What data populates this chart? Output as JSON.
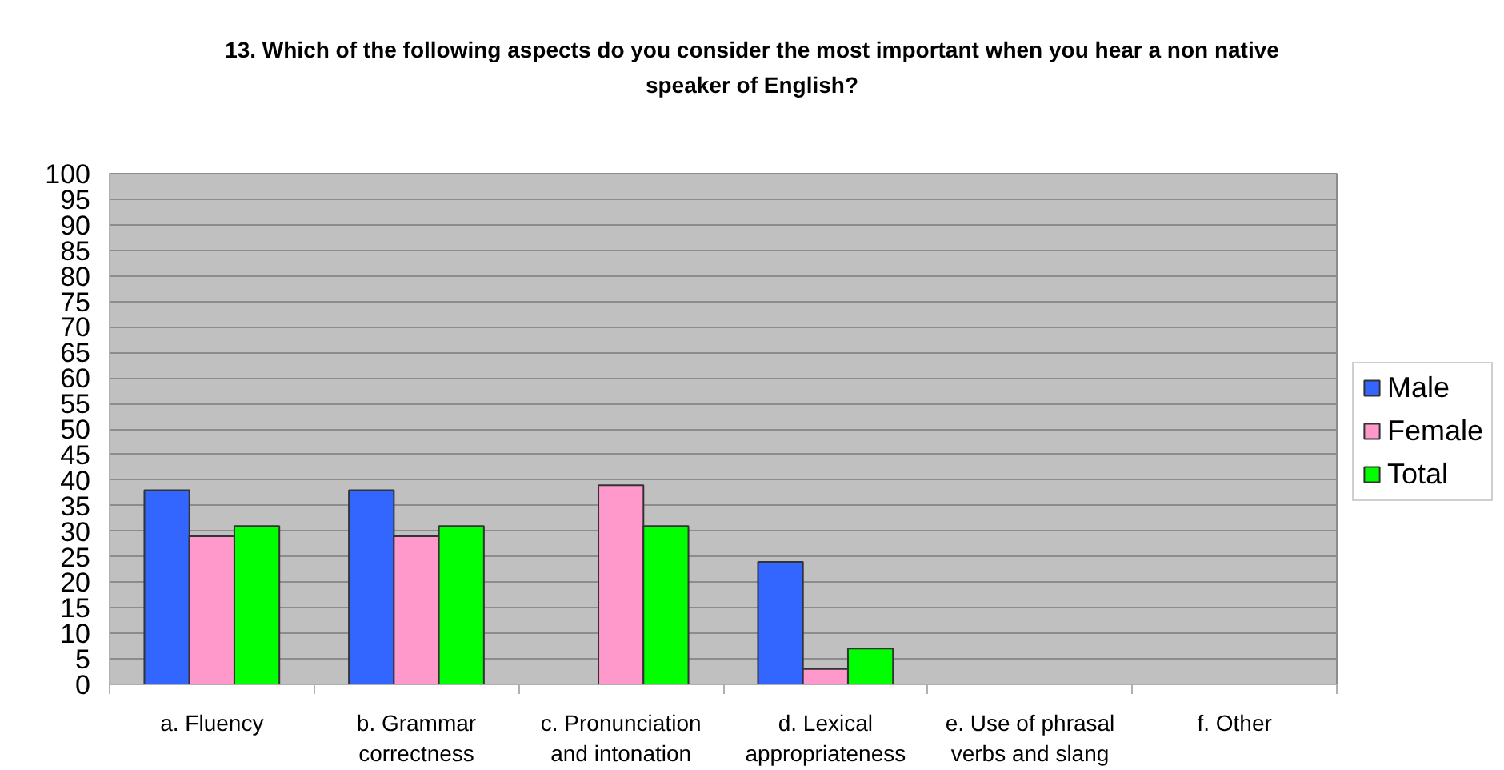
{
  "chart_data": {
    "type": "bar",
    "title": "13. Which of the following aspects do you consider the most important when you hear a non native speaker of English?",
    "categories": [
      "a. Fluency",
      "b. Grammar correctness",
      "c. Pronunciation and intonation",
      "d. Lexical appropriateness",
      "e. Use of phrasal verbs and slang",
      "f. Other"
    ],
    "series": [
      {
        "name": "Male",
        "color": "#3366ff",
        "values": [
          38,
          38,
          0,
          24,
          0,
          0
        ]
      },
      {
        "name": "Female",
        "color": "#ff99cc",
        "values": [
          29,
          29,
          39,
          3,
          0,
          0
        ]
      },
      {
        "name": "Total",
        "color": "#00ff00",
        "values": [
          31,
          31,
          31,
          7,
          0,
          0
        ]
      }
    ],
    "ylim": [
      0,
      100
    ],
    "yticks": [
      0,
      5,
      10,
      15,
      20,
      25,
      30,
      35,
      40,
      45,
      50,
      55,
      60,
      65,
      70,
      75,
      80,
      85,
      90,
      95,
      100
    ],
    "grid": "y",
    "legend": "right"
  }
}
